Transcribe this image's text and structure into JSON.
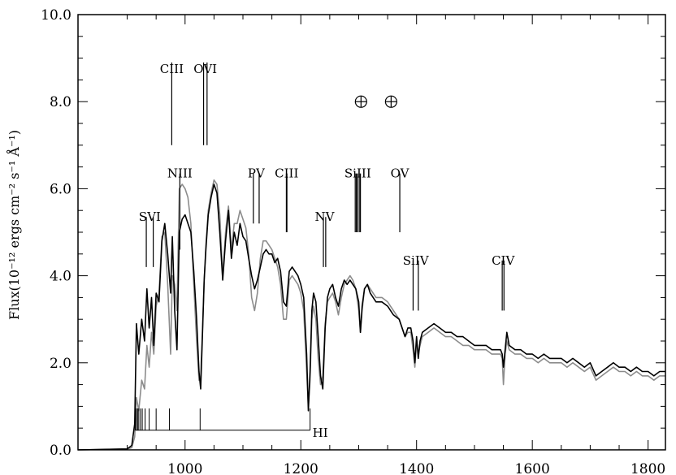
{
  "chart_data": {
    "type": "line",
    "title": "",
    "xlabel": "",
    "ylabel": "Flux(10⁻¹² ergs cm⁻² s⁻¹ Å⁻¹)",
    "xlim": [
      815,
      1830
    ],
    "ylim": [
      0,
      10
    ],
    "x_ticks": [
      {
        "value": 1000,
        "label": "1000"
      },
      {
        "value": 1200,
        "label": "1200"
      },
      {
        "value": 1400,
        "label": "1400"
      },
      {
        "value": 1600,
        "label": "1600"
      },
      {
        "value": 1800,
        "label": "1800"
      }
    ],
    "y_ticks": [
      {
        "value": 0,
        "label": "0.0"
      },
      {
        "value": 2,
        "label": "2.0"
      },
      {
        "value": 4,
        "label": "4.0"
      },
      {
        "value": 6,
        "label": "6.0"
      },
      {
        "value": 8,
        "label": "8.0"
      },
      {
        "value": 10,
        "label": "10.0"
      }
    ],
    "grid": false,
    "series": [
      {
        "color": "#000000",
        "x": [
          815,
          900,
          908,
          913,
          916,
          920,
          925,
          930,
          934,
          938,
          942,
          946,
          950,
          955,
          960,
          965,
          970,
          975,
          978,
          982,
          986,
          990,
          995,
          1000,
          1005,
          1010,
          1015,
          1020,
          1024,
          1027,
          1030,
          1033,
          1036,
          1040,
          1045,
          1050,
          1055,
          1060,
          1065,
          1070,
          1075,
          1080,
          1085,
          1090,
          1095,
          1100,
          1105,
          1110,
          1115,
          1120,
          1125,
          1130,
          1135,
          1140,
          1145,
          1150,
          1155,
          1160,
          1165,
          1170,
          1175,
          1180,
          1185,
          1190,
          1195,
          1200,
          1205,
          1210,
          1213,
          1216,
          1219,
          1222,
          1226,
          1230,
          1234,
          1238,
          1242,
          1246,
          1250,
          1255,
          1260,
          1265,
          1270,
          1275,
          1280,
          1285,
          1290,
          1295,
          1300,
          1303,
          1306,
          1310,
          1315,
          1320,
          1330,
          1340,
          1350,
          1360,
          1370,
          1375,
          1380,
          1385,
          1390,
          1394,
          1397,
          1400,
          1403,
          1406,
          1410,
          1420,
          1430,
          1440,
          1450,
          1460,
          1470,
          1480,
          1490,
          1500,
          1510,
          1520,
          1530,
          1540,
          1545,
          1548,
          1550,
          1553,
          1556,
          1560,
          1570,
          1580,
          1590,
          1600,
          1610,
          1620,
          1630,
          1640,
          1650,
          1660,
          1670,
          1680,
          1690,
          1700,
          1710,
          1720,
          1730,
          1740,
          1750,
          1760,
          1770,
          1780,
          1790,
          1800,
          1810,
          1820,
          1830
        ],
        "values": [
          0.0,
          0.02,
          0.1,
          0.6,
          2.9,
          2.2,
          3.0,
          2.5,
          3.7,
          2.8,
          3.5,
          2.4,
          3.6,
          3.4,
          4.8,
          5.2,
          4.5,
          3.6,
          4.9,
          3.2,
          2.3,
          5.0,
          5.3,
          5.4,
          5.2,
          5.0,
          4.1,
          3.0,
          1.8,
          1.4,
          2.6,
          3.9,
          4.6,
          5.4,
          5.8,
          6.1,
          5.9,
          5.0,
          3.9,
          4.8,
          5.5,
          4.4,
          5.0,
          4.7,
          5.2,
          4.9,
          4.8,
          4.4,
          4.0,
          3.7,
          3.9,
          4.2,
          4.5,
          4.6,
          4.5,
          4.5,
          4.3,
          4.4,
          4.1,
          3.4,
          3.3,
          4.1,
          4.2,
          4.1,
          4.0,
          3.8,
          3.5,
          2.2,
          0.9,
          1.8,
          3.2,
          3.6,
          3.4,
          2.6,
          1.7,
          1.4,
          2.8,
          3.5,
          3.7,
          3.8,
          3.5,
          3.3,
          3.7,
          3.9,
          3.8,
          3.9,
          3.8,
          3.7,
          3.4,
          2.7,
          3.3,
          3.7,
          3.8,
          3.6,
          3.4,
          3.4,
          3.3,
          3.1,
          3.0,
          2.8,
          2.6,
          2.8,
          2.8,
          2.5,
          2.0,
          2.6,
          2.1,
          2.5,
          2.7,
          2.8,
          2.9,
          2.8,
          2.7,
          2.7,
          2.6,
          2.6,
          2.5,
          2.4,
          2.4,
          2.4,
          2.3,
          2.3,
          2.3,
          2.2,
          1.9,
          2.3,
          2.7,
          2.4,
          2.3,
          2.3,
          2.2,
          2.2,
          2.1,
          2.2,
          2.1,
          2.1,
          2.1,
          2.0,
          2.1,
          2.0,
          1.9,
          2.0,
          1.7,
          1.8,
          1.9,
          2.0,
          1.9,
          1.9,
          1.8,
          1.9,
          1.8,
          1.8,
          1.7,
          1.8,
          1.8
        ]
      },
      {
        "color": "#8c8c8c",
        "x": [
          815,
          900,
          908,
          913,
          916,
          920,
          925,
          930,
          934,
          938,
          942,
          946,
          950,
          955,
          960,
          965,
          970,
          975,
          978,
          982,
          986,
          990,
          995,
          1000,
          1005,
          1010,
          1015,
          1020,
          1024,
          1027,
          1030,
          1033,
          1036,
          1040,
          1045,
          1050,
          1055,
          1060,
          1065,
          1070,
          1075,
          1080,
          1085,
          1090,
          1095,
          1100,
          1105,
          1110,
          1115,
          1120,
          1125,
          1130,
          1135,
          1140,
          1145,
          1150,
          1155,
          1160,
          1165,
          1170,
          1175,
          1180,
          1185,
          1190,
          1195,
          1200,
          1205,
          1210,
          1213,
          1216,
          1219,
          1222,
          1226,
          1230,
          1234,
          1238,
          1242,
          1246,
          1250,
          1255,
          1260,
          1265,
          1270,
          1275,
          1280,
          1285,
          1290,
          1295,
          1300,
          1303,
          1306,
          1310,
          1315,
          1320,
          1330,
          1340,
          1350,
          1360,
          1370,
          1375,
          1380,
          1385,
          1390,
          1394,
          1397,
          1400,
          1403,
          1406,
          1410,
          1420,
          1430,
          1440,
          1450,
          1460,
          1470,
          1480,
          1490,
          1500,
          1510,
          1520,
          1530,
          1540,
          1545,
          1548,
          1550,
          1553,
          1556,
          1560,
          1570,
          1580,
          1590,
          1600,
          1610,
          1620,
          1630,
          1640,
          1650,
          1660,
          1670,
          1680,
          1690,
          1700,
          1710,
          1720,
          1730,
          1740,
          1750,
          1760,
          1770,
          1780,
          1790,
          1800,
          1810,
          1820,
          1830
        ],
        "values": [
          0.0,
          0.02,
          0.05,
          0.3,
          1.2,
          0.9,
          1.6,
          1.4,
          2.4,
          1.9,
          2.7,
          2.2,
          3.3,
          3.6,
          4.9,
          5.0,
          3.8,
          2.2,
          4.0,
          3.8,
          3.2,
          6.0,
          6.1,
          6.0,
          5.8,
          5.2,
          3.8,
          2.5,
          1.6,
          1.7,
          2.7,
          3.9,
          4.7,
          5.5,
          5.9,
          6.2,
          6.1,
          5.4,
          4.0,
          5.0,
          5.6,
          4.6,
          5.2,
          5.2,
          5.5,
          5.3,
          5.1,
          4.5,
          3.5,
          3.2,
          3.6,
          4.4,
          4.8,
          4.8,
          4.7,
          4.6,
          4.4,
          4.2,
          3.8,
          3.0,
          3.0,
          3.9,
          4.0,
          3.9,
          3.8,
          3.6,
          3.2,
          1.8,
          1.0,
          1.6,
          3.0,
          3.3,
          3.0,
          2.1,
          1.5,
          1.7,
          2.9,
          3.4,
          3.5,
          3.6,
          3.4,
          3.1,
          3.5,
          3.8,
          3.9,
          4.0,
          3.9,
          3.7,
          3.2,
          2.7,
          3.2,
          3.7,
          3.8,
          3.7,
          3.5,
          3.5,
          3.4,
          3.2,
          3.0,
          2.8,
          2.6,
          2.7,
          2.7,
          2.3,
          1.9,
          2.5,
          2.2,
          2.4,
          2.6,
          2.7,
          2.8,
          2.7,
          2.6,
          2.6,
          2.5,
          2.4,
          2.4,
          2.3,
          2.3,
          2.3,
          2.2,
          2.2,
          2.2,
          2.1,
          1.5,
          2.2,
          2.5,
          2.3,
          2.2,
          2.2,
          2.1,
          2.1,
          2.0,
          2.1,
          2.0,
          2.0,
          2.0,
          1.9,
          2.0,
          1.9,
          1.8,
          1.9,
          1.6,
          1.7,
          1.8,
          1.9,
          1.8,
          1.8,
          1.7,
          1.8,
          1.7,
          1.7,
          1.6,
          1.7,
          1.7
        ]
      }
    ],
    "line_identifications": [
      {
        "label": "CIII",
        "waves": [
          977
        ],
        "y_top": 8.9,
        "y_bottom": 7.0,
        "label_y": 8.75
      },
      {
        "label": "OVI",
        "waves": [
          1032,
          1038
        ],
        "y_top": 8.9,
        "y_bottom": 7.0,
        "label_y": 8.75
      },
      {
        "label": "NIII",
        "waves": [
          991
        ],
        "y_top": 6.35,
        "y_bottom": 4.6,
        "label_y": 6.35
      },
      {
        "label": "SVI",
        "waves": [
          933,
          945
        ],
        "y_top": 5.35,
        "y_bottom": 4.2,
        "label_y": 5.35
      },
      {
        "label": "PV",
        "waves": [
          1118,
          1128
        ],
        "y_top": 6.35,
        "y_bottom": 5.2,
        "label_y": 6.35
      },
      {
        "label": "CIII",
        "waves": [
          1175,
          1176
        ],
        "y_top": 6.35,
        "y_bottom": 5.0,
        "label_y": 6.35
      },
      {
        "label": "NV",
        "waves": [
          1239,
          1243
        ],
        "y_top": 5.35,
        "y_bottom": 4.2,
        "label_y": 5.35
      },
      {
        "label": "SiIII",
        "waves": [
          1294,
          1296,
          1298,
          1301,
          1303
        ],
        "y_top": 6.35,
        "y_bottom": 5.0,
        "label_y": 6.35
      },
      {
        "label": "OV",
        "waves": [
          1371
        ],
        "y_top": 6.35,
        "y_bottom": 5.0,
        "label_y": 6.35
      },
      {
        "label": "SiIV",
        "waves": [
          1394,
          1403
        ],
        "y_top": 4.35,
        "y_bottom": 3.2,
        "label_y": 4.35
      },
      {
        "label": "CIV",
        "waves": [
          1548,
          1551
        ],
        "y_top": 4.35,
        "y_bottom": 3.2,
        "label_y": 4.35
      }
    ],
    "earth_symbols": {
      "waves": [
        1304,
        1356
      ],
      "y": 8.0
    },
    "hi_series": {
      "label": "HI",
      "waves": [
        914,
        916,
        918,
        920,
        923,
        926,
        931,
        938,
        950,
        973,
        1026,
        1216
      ],
      "y_base": 0.45,
      "y_tick_top": 0.95
    }
  }
}
